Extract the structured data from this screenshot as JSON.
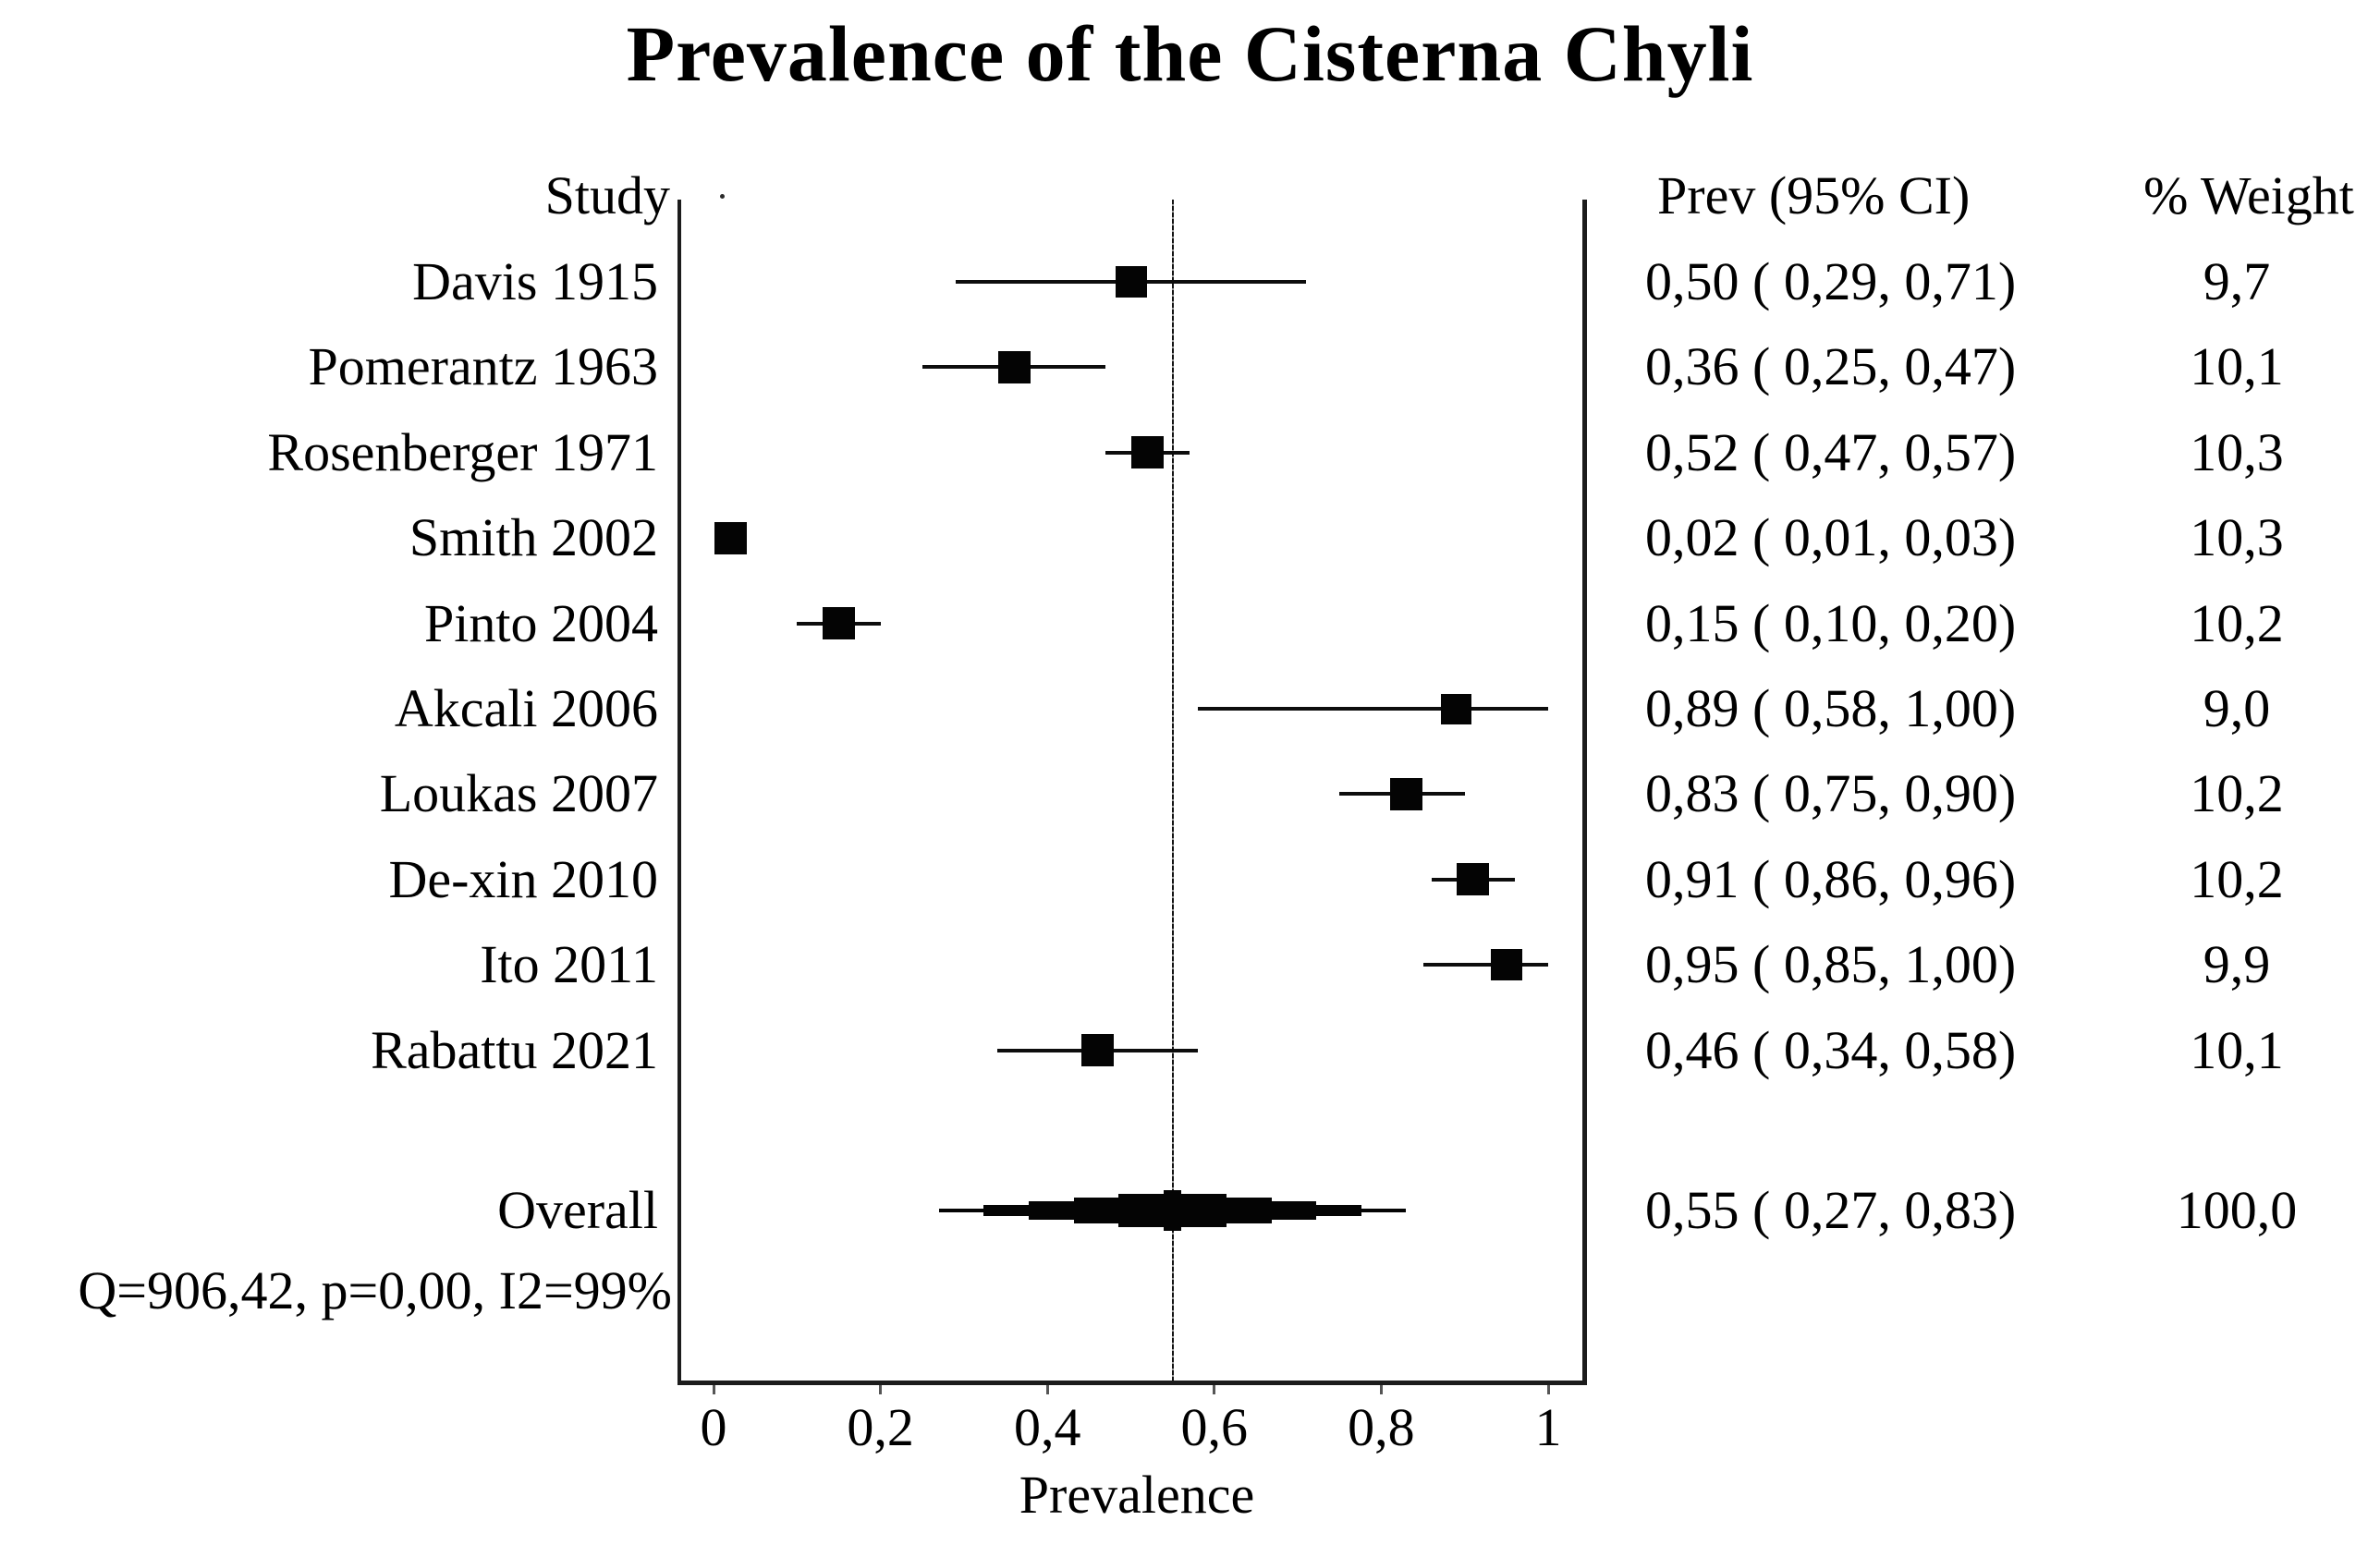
{
  "title": "Prevalence of the Cisterna Chyli",
  "columns": {
    "study": "Study",
    "prev": "Prev (95% CI)",
    "weight": "% Weight"
  },
  "heterogeneity": "Q=906,42, p=0,00, I2=99%",
  "axis": {
    "label": "Prevalence",
    "ticks": [
      "0",
      "0,2",
      "0,4",
      "0,6",
      "0,8",
      "1"
    ],
    "tick_values": [
      0,
      0.2,
      0.4,
      0.6,
      0.8,
      1
    ]
  },
  "colors": {
    "ink": "#000000",
    "marker": "#040404",
    "background": "#ffffff",
    "tick": "#555555"
  },
  "chart_data": {
    "type": "scatter",
    "variant": "forest-plot",
    "title": "Prevalence of the Cisterna Chyli",
    "xlabel": "Prevalence",
    "ylabel": "",
    "xlim": [
      -0.04,
      1.04
    ],
    "grid": false,
    "reference_line": 0.55,
    "studies": [
      {
        "label": "Davis 1915",
        "est": 0.5,
        "lo": 0.29,
        "hi": 0.71,
        "prev_text": "0,50 ( 0,29, 0,71)",
        "weight": 9.7,
        "weight_text": "9,7"
      },
      {
        "label": "Pomerantz 1963",
        "est": 0.36,
        "lo": 0.25,
        "hi": 0.47,
        "prev_text": "0,36 ( 0,25, 0,47)",
        "weight": 10.1,
        "weight_text": "10,1"
      },
      {
        "label": "Rosenberger 1971",
        "est": 0.52,
        "lo": 0.47,
        "hi": 0.57,
        "prev_text": "0,52 ( 0,47, 0,57)",
        "weight": 10.3,
        "weight_text": "10,3"
      },
      {
        "label": "Smith 2002",
        "est": 0.02,
        "lo": 0.01,
        "hi": 0.03,
        "prev_text": "0,02 ( 0,01, 0,03)",
        "weight": 10.3,
        "weight_text": "10,3"
      },
      {
        "label": "Pinto 2004",
        "est": 0.15,
        "lo": 0.1,
        "hi": 0.2,
        "prev_text": "0,15 ( 0,10, 0,20)",
        "weight": 10.2,
        "weight_text": "10,2"
      },
      {
        "label": "Akcali 2006",
        "est": 0.89,
        "lo": 0.58,
        "hi": 1.0,
        "prev_text": "0,89 ( 0,58, 1,00)",
        "weight": 9.0,
        "weight_text": "9,0"
      },
      {
        "label": "Loukas 2007",
        "est": 0.83,
        "lo": 0.75,
        "hi": 0.9,
        "prev_text": "0,83 ( 0,75, 0,90)",
        "weight": 10.2,
        "weight_text": "10,2"
      },
      {
        "label": "De-xin 2010",
        "est": 0.91,
        "lo": 0.86,
        "hi": 0.96,
        "prev_text": "0,91 ( 0,86, 0,96)",
        "weight": 10.2,
        "weight_text": "10,2"
      },
      {
        "label": "Ito 2011",
        "est": 0.95,
        "lo": 0.85,
        "hi": 1.0,
        "prev_text": "0,95 ( 0,85, 1,00)",
        "weight": 9.9,
        "weight_text": "9,9"
      },
      {
        "label": "Rabattu 2021",
        "est": 0.46,
        "lo": 0.34,
        "hi": 0.58,
        "prev_text": "0,46 ( 0,34, 0,58)",
        "weight": 10.1,
        "weight_text": "10,1"
      }
    ],
    "overall": {
      "label": "Overall",
      "est": 0.55,
      "lo": 0.27,
      "hi": 0.83,
      "prev_text": "0,55 ( 0,27, 0,83)",
      "weight": 100.0,
      "weight_text": "100,0"
    },
    "heterogeneity": "Q=906,42, p=0,00, I2=99%",
    "legend": null
  }
}
